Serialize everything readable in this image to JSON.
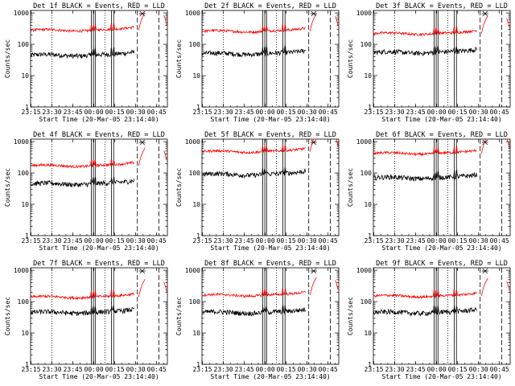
{
  "chart_data": {
    "type": "line",
    "ylabel": "Counts/sec",
    "xlabel": "Start Time (20-Mar-05 23:14:40)",
    "yscale": "log",
    "ylim": [
      1,
      1200
    ],
    "y_ticks": [
      1,
      10,
      100,
      1000
    ],
    "y_tick_labels": [
      "1",
      "10",
      "100",
      "1000"
    ],
    "x_ticks": [
      "23:15",
      "23:30",
      "23:45",
      "00:00",
      "00:15",
      "00:30",
      "00:45"
    ],
    "x_tick_minutes": [
      0.33,
      15.33,
      30.33,
      45.33,
      60.33,
      75.33,
      90.33
    ],
    "x_range_minutes": [
      0,
      98
    ],
    "series_colors": {
      "events": "#000000",
      "lld": "#ff0000"
    },
    "markers": {
      "dotted_lines": [
        15.33,
        53.33
      ],
      "solid_lines": [
        43.5,
        45.0,
        46.3,
        58.0,
        59.5
      ],
      "dashed_lines": [
        76.5,
        92.0
      ],
      "annotation_x": 80.0
    },
    "panels": [
      {
        "title": "Det 1f BLACK = Events, RED = LLD",
        "events_level": 45,
        "lld_level": 280
      },
      {
        "title": "Det 2f BLACK = Events, RED = LLD",
        "events_level": 50,
        "lld_level": 260
      },
      {
        "title": "Det 3f BLACK = Events, RED = LLD",
        "events_level": 55,
        "lld_level": 220
      },
      {
        "title": "Det 4f BLACK = Events, RED = LLD",
        "events_level": 45,
        "lld_level": 170
      },
      {
        "title": "Det 5f BLACK = Events, RED = LLD",
        "events_level": 90,
        "lld_level": 480
      },
      {
        "title": "Det 6f BLACK = Events, RED = LLD",
        "events_level": 70,
        "lld_level": 420
      },
      {
        "title": "Det 7f BLACK = Events, RED = LLD",
        "events_level": 45,
        "lld_level": 140
      },
      {
        "title": "Det 8f BLACK = Events, RED = LLD",
        "events_level": 45,
        "lld_level": 160
      },
      {
        "title": "Det 9f BLACK = Events, RED = LLD",
        "events_level": 45,
        "lld_level": 150
      }
    ]
  }
}
